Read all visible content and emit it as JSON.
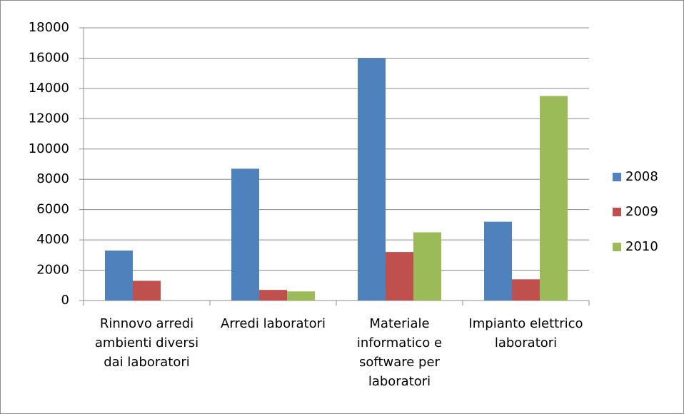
{
  "chart_data": {
    "type": "bar",
    "categories": [
      "Rinnovo arredi ambienti diversi dai laboratori",
      "Arredi laboratori",
      "Materiale informatico e software per laboratori",
      "Impianto elettrico laboratori"
    ],
    "series": [
      {
        "name": "2008",
        "color": "#4f81bd",
        "values": [
          3300,
          8700,
          16000,
          5200
        ]
      },
      {
        "name": "2009",
        "color": "#c0504d",
        "values": [
          1300,
          700,
          3200,
          1400
        ]
      },
      {
        "name": "2010",
        "color": "#9bbb59",
        "values": [
          0,
          600,
          4500,
          13500
        ]
      }
    ],
    "ylim": [
      0,
      18000
    ],
    "yticks": [
      0,
      2000,
      4000,
      6000,
      8000,
      10000,
      12000,
      14000,
      16000,
      18000
    ],
    "grid": true,
    "legend": "right"
  }
}
